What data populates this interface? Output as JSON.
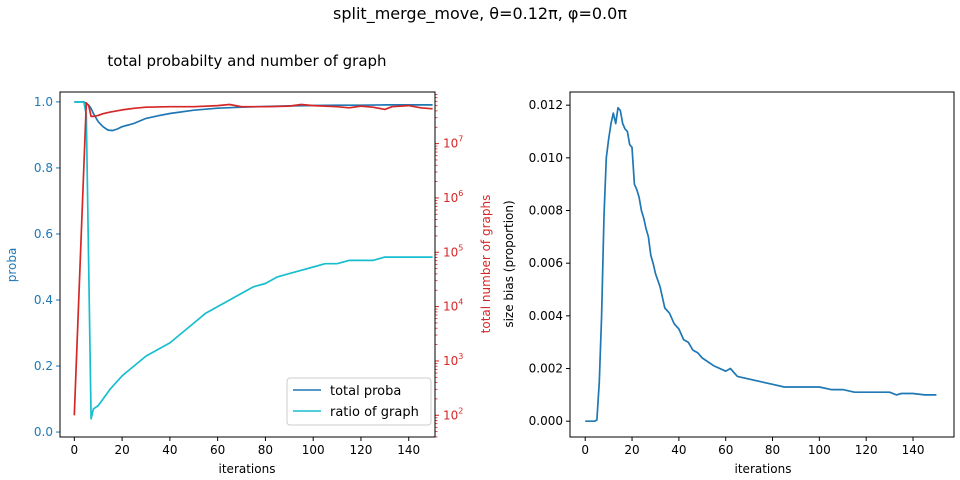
{
  "suptitle": "split_merge_move, θ=0.12π, φ=0.0π",
  "colors": {
    "blue": "#1f77b4",
    "red": "#d62728",
    "cyan": "#17becf",
    "axis": "#000000"
  },
  "chart_data": [
    {
      "type": "line",
      "title": "total probabilty and number of graph",
      "xlabel": "iterations",
      "ylabel": "proba",
      "ylabel_right": "total number of graphs",
      "xlim": [
        -6,
        151
      ],
      "ylim": [
        -0.015,
        1.03
      ],
      "y2lim_log10": [
        1.6,
        7.95
      ],
      "y2scale": "log",
      "xticks": [
        0,
        20,
        40,
        60,
        80,
        100,
        120,
        140
      ],
      "xtick_labels": [
        "0",
        "20",
        "40",
        "60",
        "80",
        "100",
        "120",
        "140"
      ],
      "yticks": [
        0.0,
        0.2,
        0.4,
        0.6,
        0.8,
        1.0
      ],
      "ytick_labels": [
        "0.0",
        "0.2",
        "0.4",
        "0.6",
        "0.8",
        "1.0"
      ],
      "y2ticks_log10": [
        2,
        3,
        4,
        5,
        6,
        7
      ],
      "y2tick_labels": [
        "10^2",
        "10^3",
        "10^4",
        "10^5",
        "10^6",
        "10^7"
      ],
      "legend": {
        "position": "lower right",
        "entries": [
          "total proba",
          "ratio of graph"
        ]
      },
      "series": [
        {
          "name": "total proba",
          "axis": "left",
          "color": "#1f77b4",
          "x": [
            0,
            4,
            5,
            6,
            7,
            8,
            10,
            12,
            14,
            16,
            18,
            20,
            25,
            30,
            35,
            40,
            50,
            60,
            70,
            80,
            90,
            100,
            110,
            120,
            130,
            140,
            150
          ],
          "y": [
            1.0,
            1.0,
            0.995,
            0.99,
            0.98,
            0.965,
            0.94,
            0.925,
            0.915,
            0.913,
            0.918,
            0.925,
            0.935,
            0.95,
            0.958,
            0.965,
            0.975,
            0.981,
            0.984,
            0.986,
            0.988,
            0.989,
            0.99,
            0.99,
            0.991,
            0.991,
            0.991
          ]
        },
        {
          "name": "ratio of graph",
          "axis": "left",
          "color": "#17becf",
          "x": [
            0,
            4,
            5,
            6,
            7,
            8,
            10,
            12,
            15,
            20,
            25,
            30,
            35,
            40,
            45,
            50,
            55,
            60,
            65,
            70,
            75,
            80,
            85,
            90,
            95,
            100,
            105,
            110,
            115,
            120,
            125,
            130,
            135,
            140,
            145,
            150
          ],
          "y": [
            1.0,
            1.0,
            0.96,
            0.5,
            0.04,
            0.07,
            0.08,
            0.1,
            0.13,
            0.17,
            0.2,
            0.23,
            0.25,
            0.27,
            0.3,
            0.33,
            0.36,
            0.38,
            0.4,
            0.42,
            0.44,
            0.45,
            0.47,
            0.48,
            0.49,
            0.5,
            0.51,
            0.51,
            0.52,
            0.52,
            0.52,
            0.53,
            0.53,
            0.53,
            0.53,
            0.53
          ]
        },
        {
          "name": "total number of graphs",
          "axis": "right",
          "color": "#d62728",
          "x": [
            0,
            5,
            6,
            7,
            8,
            10,
            12,
            15,
            20,
            25,
            30,
            40,
            50,
            60,
            65,
            70,
            80,
            90,
            95,
            100,
            110,
            115,
            120,
            125,
            130,
            133,
            140,
            145,
            150
          ],
          "log10y": [
            2.0,
            7.75,
            7.7,
            7.5,
            7.5,
            7.52,
            7.55,
            7.58,
            7.62,
            7.65,
            7.67,
            7.68,
            7.68,
            7.7,
            7.72,
            7.68,
            7.68,
            7.69,
            7.72,
            7.7,
            7.68,
            7.66,
            7.69,
            7.67,
            7.63,
            7.68,
            7.7,
            7.66,
            7.64
          ]
        }
      ]
    },
    {
      "type": "line",
      "title": "",
      "xlabel": "iterations",
      "ylabel": "size bias (proportion)",
      "xlim": [
        -6.5,
        157.5
      ],
      "ylim": [
        -0.0006,
        0.0125
      ],
      "xticks": [
        0,
        20,
        40,
        60,
        80,
        100,
        120,
        140
      ],
      "xtick_labels": [
        "0",
        "20",
        "40",
        "60",
        "80",
        "100",
        "120",
        "140"
      ],
      "yticks": [
        0.0,
        0.002,
        0.004,
        0.006,
        0.008,
        0.01,
        0.012
      ],
      "ytick_labels": [
        "0.000",
        "0.002",
        "0.004",
        "0.006",
        "0.008",
        "0.010",
        "0.012"
      ],
      "series": [
        {
          "color": "#1f77b4",
          "x": [
            0,
            2,
            4,
            5,
            6,
            7,
            8,
            9,
            10,
            11,
            12,
            13,
            14,
            15,
            16,
            17,
            18,
            19,
            20,
            21,
            22,
            23,
            24,
            25,
            26,
            27,
            28,
            29,
            30,
            32,
            34,
            36,
            38,
            40,
            42,
            44,
            46,
            48,
            50,
            55,
            60,
            62,
            65,
            70,
            75,
            80,
            85,
            90,
            95,
            100,
            105,
            110,
            115,
            120,
            125,
            130,
            133,
            135,
            140,
            145,
            150
          ],
          "y": [
            0.0,
            0.0,
            0.0,
            5e-05,
            0.0015,
            0.004,
            0.0078,
            0.01,
            0.0107,
            0.0113,
            0.0117,
            0.0113,
            0.0119,
            0.0118,
            0.0113,
            0.0111,
            0.011,
            0.0105,
            0.0104,
            0.009,
            0.0088,
            0.0085,
            0.008,
            0.0077,
            0.0073,
            0.007,
            0.0063,
            0.006,
            0.0056,
            0.0051,
            0.0043,
            0.0041,
            0.0037,
            0.0035,
            0.0031,
            0.003,
            0.0027,
            0.0026,
            0.0024,
            0.0021,
            0.0019,
            0.002,
            0.0017,
            0.0016,
            0.0015,
            0.0014,
            0.0013,
            0.0013,
            0.0013,
            0.0013,
            0.0012,
            0.0012,
            0.0011,
            0.0011,
            0.0011,
            0.0011,
            0.001,
            0.00105,
            0.00105,
            0.001,
            0.001
          ]
        }
      ]
    }
  ]
}
